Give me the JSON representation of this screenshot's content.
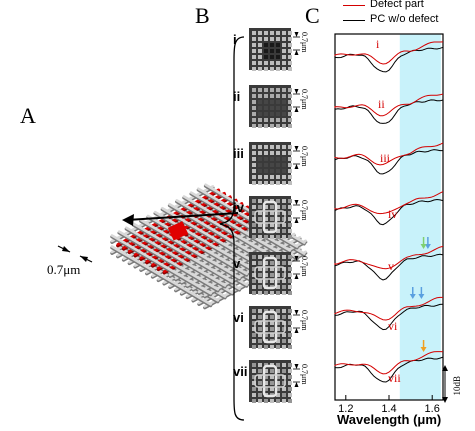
{
  "panels": {
    "a": "A",
    "b": "B",
    "c": "C"
  },
  "lattice": {
    "scale_label": "0.7μm",
    "rod_color": "#d8d8d8",
    "defect_color": "#e00000"
  },
  "images": [
    {
      "id": "i",
      "label": "i",
      "scale": "0.7μm"
    },
    {
      "id": "ii",
      "label": "ii",
      "scale": "0.7μm"
    },
    {
      "id": "iii",
      "label": "iii",
      "scale": "0.7μm"
    },
    {
      "id": "iv",
      "label": "iv",
      "scale": "0.7μm"
    },
    {
      "id": "v",
      "label": "v",
      "scale": "0.7μm"
    },
    {
      "id": "vi",
      "label": "vi",
      "scale": "0.7μm"
    },
    {
      "id": "vii",
      "label": "vii",
      "scale": "0.7μm"
    }
  ],
  "chart_data": {
    "type": "line",
    "xlabel": "Wavelength (μm)",
    "xlim": [
      1.15,
      1.65
    ],
    "xticks": [
      "1.2",
      "1.4",
      "1.6"
    ],
    "xtick_values": [
      1.2,
      1.4,
      1.6
    ],
    "ylabel": "",
    "y_scale_bar": "10dB",
    "legend": [
      {
        "name": "Defect part",
        "color": "#d40000"
      },
      {
        "name": "PC w/o defect",
        "color": "#000000"
      }
    ],
    "highlight_band": {
      "from": 1.45,
      "to": 1.64,
      "color": "#c8f2fa"
    },
    "curve_labels": [
      "i",
      "ii",
      "iii",
      "iv",
      "v",
      "vi",
      "vii"
    ],
    "arrows": [
      {
        "curve": "v",
        "x": 1.58,
        "color": "#5aa0e0"
      },
      {
        "curve": "v",
        "x": 1.56,
        "color": "#7fd070"
      },
      {
        "curve": "vi",
        "x": 1.55,
        "color": "#5aa0e0"
      },
      {
        "curve": "vi",
        "x": 1.51,
        "color": "#5aa0e0"
      },
      {
        "curve": "vii",
        "x": 1.56,
        "color": "#f0a020"
      }
    ]
  }
}
